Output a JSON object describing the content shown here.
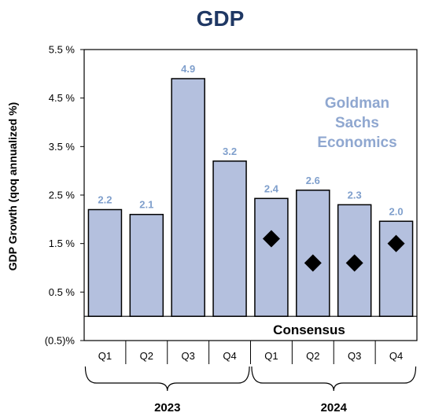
{
  "chart_data": {
    "type": "bar",
    "title": "GDP",
    "ylabel": "GDP Growth (qoq annualized %)",
    "ylim": [
      -0.5,
      5.5
    ],
    "y_ticks": [
      -0.5,
      0.5,
      1.5,
      2.5,
      3.5,
      4.5,
      5.5
    ],
    "y_tick_labels": [
      "(0.5)%",
      "0.5 %",
      "1.5 %",
      "2.5 %",
      "3.5 %",
      "4.5 %",
      "5.5 %"
    ],
    "categories": [
      "Q1",
      "Q2",
      "Q3",
      "Q4",
      "Q1",
      "Q2",
      "Q3",
      "Q4"
    ],
    "groups": [
      {
        "label": "2023",
        "span": [
          0,
          3
        ]
      },
      {
        "label": "2024",
        "span": [
          4,
          7
        ]
      }
    ],
    "series": [
      {
        "name": "",
        "values": [
          2.2,
          2.1,
          4.9,
          3.2,
          2.4,
          2.6,
          2.3,
          2.0
        ],
        "value_labels": [
          "2.2",
          "2.1",
          "4.9",
          "3.2",
          "2.4",
          "2.6",
          "2.3",
          "2.0"
        ]
      },
      {
        "name": "Consensus",
        "marker": "diamond",
        "values": [
          null,
          null,
          null,
          null,
          1.6,
          1.1,
          1.1,
          1.5
        ]
      }
    ],
    "bar_heights": [
      2.2,
      2.1,
      4.9,
      3.2,
      2.43,
      2.6,
      2.3,
      1.96
    ],
    "annotation": "Goldman\nSachs\nEconomics",
    "consensus_label": "Consensus",
    "grid": false,
    "colors": {
      "title": "#1f3864",
      "bar": "#b4c0de",
      "bar_stroke": "#000000",
      "data_label": "#7f9fcc",
      "annotation": "#8fa7d0",
      "marker": "#000000"
    }
  }
}
